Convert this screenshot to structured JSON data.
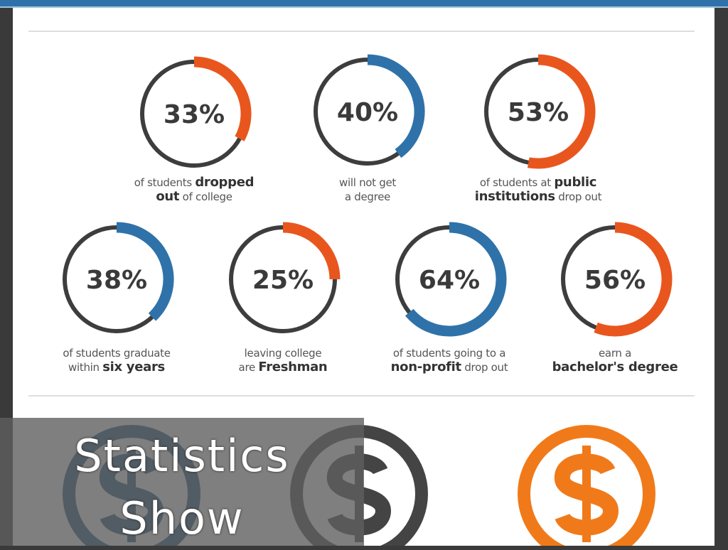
{
  "slide_title": [
    "Statistics",
    "Show"
  ],
  "colors": {
    "orange": "#e8561e",
    "blue": "#2f72a9",
    "ring": "#3d3d3d",
    "coin_orange": "#f07a1a"
  },
  "chart_data": {
    "type": "pie",
    "subtype": "donut-grid",
    "title": "",
    "items": [
      {
        "value": 33,
        "label": "33%",
        "color": "orange",
        "text": [
          "of students ",
          "dropped",
          "",
          "out",
          " of college"
        ]
      },
      {
        "value": 40,
        "label": "40%",
        "color": "blue",
        "text": [
          "will not get",
          "",
          "",
          "",
          "a degree"
        ]
      },
      {
        "value": 53,
        "label": "53%",
        "color": "orange",
        "text": [
          "of students at ",
          "public",
          "",
          "institutions",
          " drop out"
        ]
      },
      {
        "value": 38,
        "label": "38%",
        "color": "blue",
        "text": [
          "of students graduate",
          "",
          "within ",
          "six years",
          ""
        ]
      },
      {
        "value": 25,
        "label": "25%",
        "color": "orange",
        "text": [
          "leaving college",
          "",
          "are ",
          "Freshman",
          ""
        ]
      },
      {
        "value": 64,
        "label": "64%",
        "color": "blue",
        "text": [
          "of students going to a",
          "",
          "",
          "non-profit",
          " drop out"
        ]
      },
      {
        "value": 56,
        "label": "56%",
        "color": "orange",
        "text": [
          "earn a",
          "",
          "",
          "bachelor's degree",
          ""
        ]
      }
    ]
  },
  "coins": [
    {
      "icon": "dollar-coin-icon",
      "color": "#1f4f78"
    },
    {
      "icon": "dollar-coin-icon",
      "color": "#444444"
    },
    {
      "icon": "dollar-coin-icon",
      "color": "#f07a1a"
    }
  ]
}
